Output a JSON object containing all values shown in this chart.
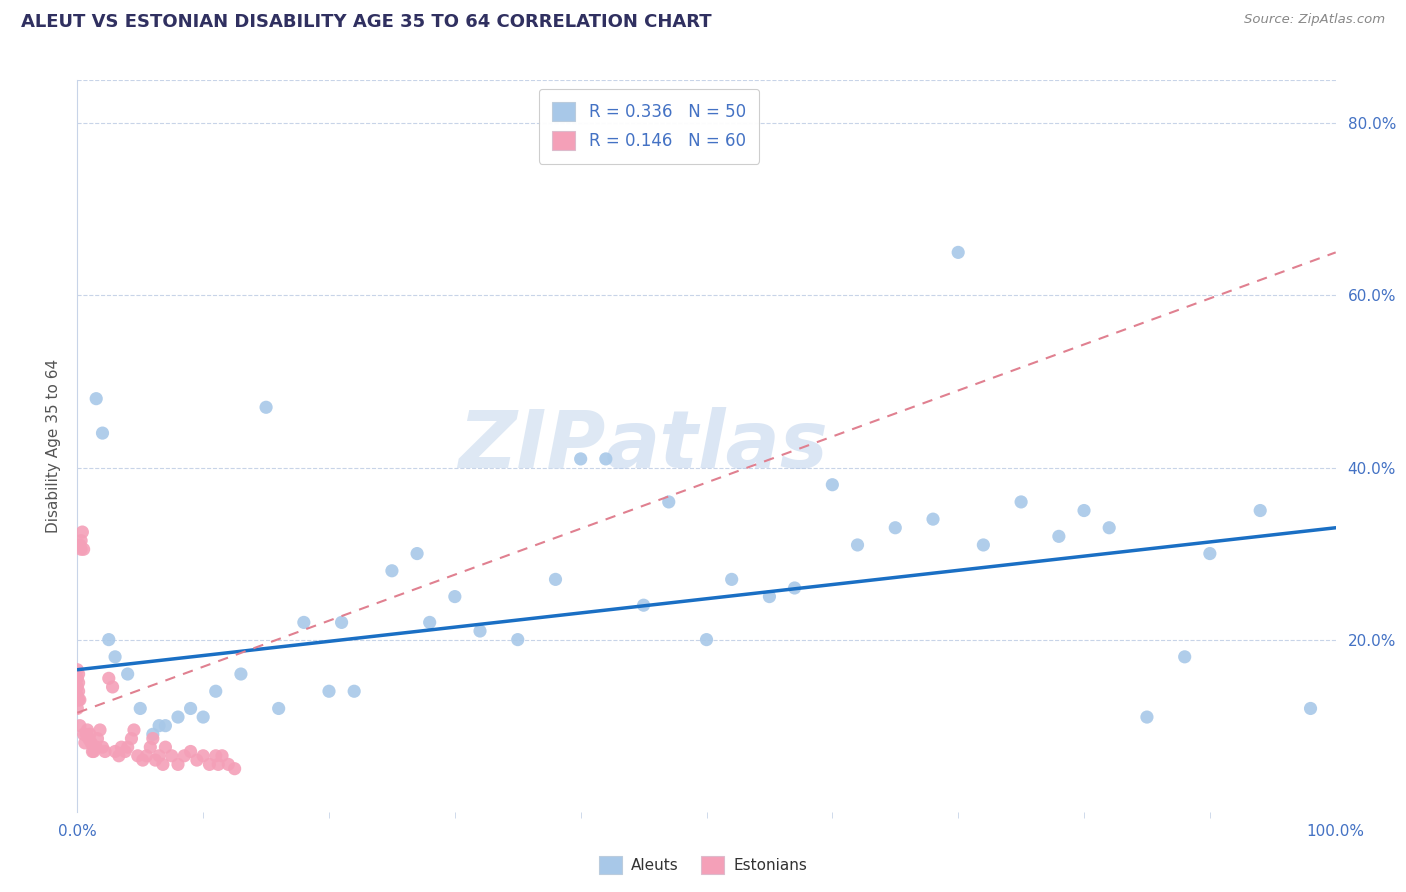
{
  "title": "ALEUT VS ESTONIAN DISABILITY AGE 35 TO 64 CORRELATION CHART",
  "source": "Source: ZipAtlas.com",
  "ylabel": "Disability Age 35 to 64",
  "xlim": [
    0.0,
    1.0
  ],
  "ylim": [
    0.0,
    0.85
  ],
  "ytick_labels": [
    "20.0%",
    "40.0%",
    "60.0%",
    "80.0%"
  ],
  "ytick_positions": [
    0.2,
    0.4,
    0.6,
    0.8
  ],
  "watermark_zip": "ZIP",
  "watermark_atlas": "atlas",
  "aleut_R": 0.336,
  "aleut_N": 50,
  "estonian_R": 0.146,
  "estonian_N": 60,
  "aleut_color": "#a8c8e8",
  "estonian_color": "#f4a0b8",
  "aleut_line_color": "#1a6fc4",
  "estonian_line_color": "#e08090",
  "background_color": "#ffffff",
  "grid_color": "#c8d4e8",
  "title_color": "#303060",
  "axis_color": "#4472c4",
  "aleut_x": [
    0.015,
    0.02,
    0.025,
    0.03,
    0.04,
    0.05,
    0.06,
    0.065,
    0.07,
    0.08,
    0.09,
    0.1,
    0.11,
    0.13,
    0.15,
    0.16,
    0.18,
    0.2,
    0.21,
    0.22,
    0.25,
    0.27,
    0.28,
    0.3,
    0.32,
    0.35,
    0.38,
    0.4,
    0.42,
    0.45,
    0.47,
    0.5,
    0.52,
    0.55,
    0.57,
    0.6,
    0.62,
    0.65,
    0.68,
    0.7,
    0.72,
    0.75,
    0.78,
    0.8,
    0.82,
    0.85,
    0.88,
    0.9,
    0.94,
    0.98
  ],
  "aleut_y": [
    0.48,
    0.44,
    0.2,
    0.18,
    0.16,
    0.12,
    0.09,
    0.1,
    0.1,
    0.11,
    0.12,
    0.11,
    0.14,
    0.16,
    0.47,
    0.12,
    0.22,
    0.14,
    0.22,
    0.14,
    0.28,
    0.3,
    0.22,
    0.25,
    0.21,
    0.2,
    0.27,
    0.41,
    0.41,
    0.24,
    0.36,
    0.2,
    0.27,
    0.25,
    0.26,
    0.38,
    0.31,
    0.33,
    0.34,
    0.65,
    0.31,
    0.36,
    0.32,
    0.35,
    0.33,
    0.11,
    0.18,
    0.3,
    0.35,
    0.12
  ],
  "estonian_x": [
    0.0,
    0.0,
    0.0,
    0.0,
    0.0,
    0.001,
    0.001,
    0.001,
    0.001,
    0.002,
    0.002,
    0.002,
    0.003,
    0.003,
    0.004,
    0.005,
    0.005,
    0.006,
    0.007,
    0.008,
    0.009,
    0.01,
    0.011,
    0.012,
    0.013,
    0.015,
    0.016,
    0.018,
    0.02,
    0.022,
    0.025,
    0.028,
    0.03,
    0.033,
    0.035,
    0.038,
    0.04,
    0.043,
    0.045,
    0.048,
    0.052,
    0.055,
    0.058,
    0.06,
    0.062,
    0.065,
    0.068,
    0.07,
    0.075,
    0.08,
    0.085,
    0.09,
    0.095,
    0.1,
    0.105,
    0.11,
    0.112,
    0.115,
    0.12,
    0.125
  ],
  "estonian_y": [
    0.135,
    0.145,
    0.155,
    0.165,
    0.12,
    0.13,
    0.15,
    0.14,
    0.16,
    0.13,
    0.31,
    0.1,
    0.315,
    0.305,
    0.325,
    0.305,
    0.09,
    0.08,
    0.09,
    0.095,
    0.085,
    0.09,
    0.08,
    0.07,
    0.07,
    0.075,
    0.085,
    0.095,
    0.075,
    0.07,
    0.155,
    0.145,
    0.07,
    0.065,
    0.075,
    0.07,
    0.075,
    0.085,
    0.095,
    0.065,
    0.06,
    0.065,
    0.075,
    0.085,
    0.06,
    0.065,
    0.055,
    0.075,
    0.065,
    0.055,
    0.065,
    0.07,
    0.06,
    0.065,
    0.055,
    0.065,
    0.055,
    0.065,
    0.055,
    0.05
  ],
  "aleut_line_x0": 0.0,
  "aleut_line_y0": 0.165,
  "aleut_line_x1": 1.0,
  "aleut_line_y1": 0.33,
  "estonian_line_x0": 0.0,
  "estonian_line_y0": 0.115,
  "estonian_line_x1": 1.0,
  "estonian_line_y1": 0.65
}
